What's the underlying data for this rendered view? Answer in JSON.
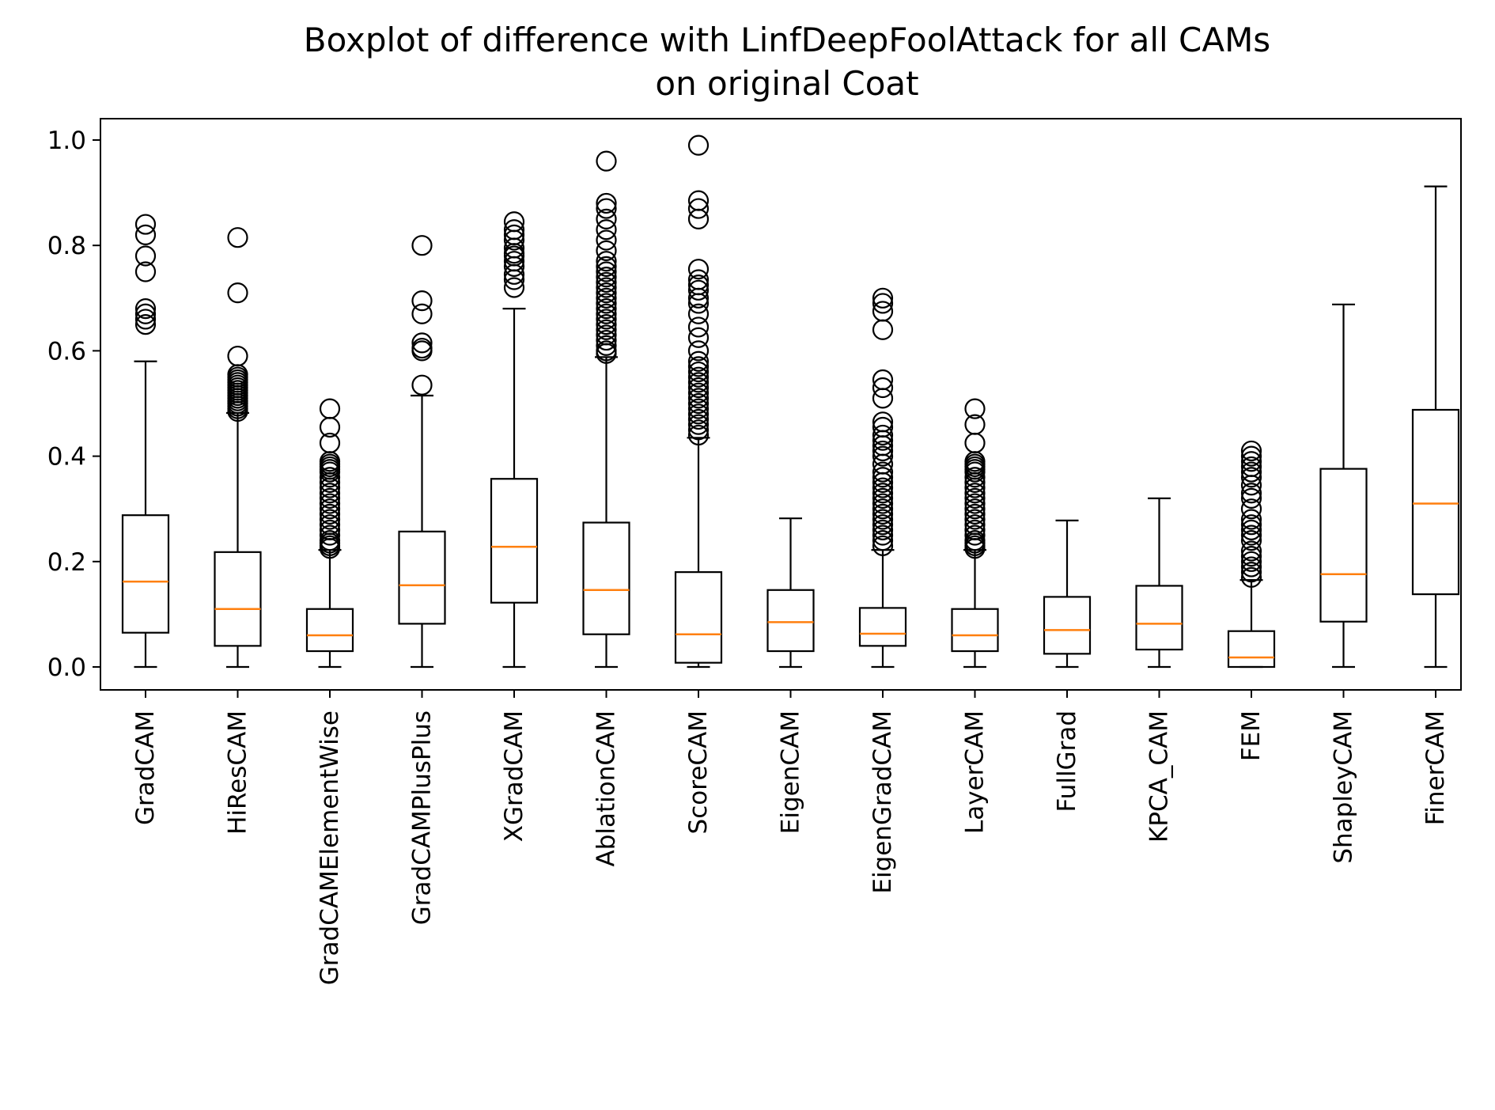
{
  "chart_data": {
    "type": "boxplot",
    "title": "Boxplot of difference with LinfDeepFoolAttack for all CAMs",
    "subtitle": "on original Coat",
    "xlabel": "",
    "ylabel": "",
    "ylim": [
      -0.045,
      1.04
    ],
    "yticks": [
      0.0,
      0.2,
      0.4,
      0.6,
      0.8,
      1.0
    ],
    "ytick_labels": [
      "0.0",
      "0.2",
      "0.4",
      "0.6",
      "0.8",
      "1.0"
    ],
    "grid": false,
    "colors": {
      "box": "#000000",
      "median": "#ff7f0e",
      "background": "#ffffff"
    },
    "categories": [
      "GradCAM",
      "HiResCAM",
      "GradCAMElementWise",
      "GradCAMPlusPlus",
      "XGradCAM",
      "AblationCAM",
      "ScoreCAM",
      "EigenCAM",
      "EigenGradCAM",
      "LayerCAM",
      "FullGrad",
      "KPCA_CAM",
      "FEM",
      "ShapleyCAM",
      "FinerCAM"
    ],
    "boxes": [
      {
        "name": "GradCAM",
        "whislo": 0.0,
        "q1": 0.065,
        "med": 0.162,
        "q3": 0.288,
        "whishi": 0.58,
        "fliers": [
          0.84,
          0.82,
          0.78,
          0.75,
          0.68,
          0.67,
          0.66,
          0.65
        ]
      },
      {
        "name": "HiResCAM",
        "whislo": 0.0,
        "q1": 0.04,
        "med": 0.11,
        "q3": 0.218,
        "whishi": 0.482,
        "fliers": [
          0.815,
          0.71,
          0.59,
          0.555,
          0.55,
          0.545,
          0.54,
          0.535,
          0.53,
          0.525,
          0.52,
          0.515,
          0.51,
          0.505,
          0.5,
          0.495,
          0.49,
          0.485
        ]
      },
      {
        "name": "GradCAMElementWise",
        "whislo": 0.0,
        "q1": 0.03,
        "med": 0.06,
        "q3": 0.11,
        "whishi": 0.222,
        "fliers": [
          0.49,
          0.455,
          0.425,
          0.39,
          0.385,
          0.38,
          0.375,
          0.37,
          0.36,
          0.35,
          0.34,
          0.33,
          0.32,
          0.31,
          0.3,
          0.29,
          0.28,
          0.27,
          0.26,
          0.25,
          0.24,
          0.235,
          0.23,
          0.225
        ]
      },
      {
        "name": "GradCAMPlusPlus",
        "whislo": 0.0,
        "q1": 0.082,
        "med": 0.155,
        "q3": 0.257,
        "whishi": 0.515,
        "fliers": [
          0.8,
          0.695,
          0.67,
          0.615,
          0.605,
          0.6,
          0.535
        ]
      },
      {
        "name": "XGradCAM",
        "whislo": 0.0,
        "q1": 0.122,
        "med": 0.228,
        "q3": 0.357,
        "whishi": 0.68,
        "fliers": [
          0.845,
          0.83,
          0.82,
          0.81,
          0.795,
          0.785,
          0.78,
          0.77,
          0.76,
          0.745,
          0.735,
          0.72
        ]
      },
      {
        "name": "AblationCAM",
        "whislo": 0.0,
        "q1": 0.062,
        "med": 0.146,
        "q3": 0.274,
        "whishi": 0.588,
        "fliers": [
          0.96,
          0.88,
          0.87,
          0.85,
          0.83,
          0.81,
          0.79,
          0.77,
          0.76,
          0.75,
          0.74,
          0.73,
          0.72,
          0.71,
          0.7,
          0.69,
          0.68,
          0.67,
          0.66,
          0.65,
          0.64,
          0.63,
          0.62,
          0.61,
          0.6,
          0.595
        ]
      },
      {
        "name": "ScoreCAM",
        "whislo": 0.0,
        "q1": 0.008,
        "med": 0.062,
        "q3": 0.18,
        "whishi": 0.435,
        "fliers": [
          0.99,
          0.885,
          0.87,
          0.85,
          0.755,
          0.735,
          0.725,
          0.715,
          0.7,
          0.69,
          0.67,
          0.645,
          0.625,
          0.6,
          0.58,
          0.57,
          0.56,
          0.55,
          0.54,
          0.53,
          0.52,
          0.51,
          0.5,
          0.49,
          0.48,
          0.47,
          0.46,
          0.45,
          0.44
        ]
      },
      {
        "name": "EigenCAM",
        "whislo": 0.0,
        "q1": 0.03,
        "med": 0.085,
        "q3": 0.146,
        "whishi": 0.282,
        "fliers": []
      },
      {
        "name": "EigenGradCAM",
        "whislo": 0.0,
        "q1": 0.04,
        "med": 0.063,
        "q3": 0.112,
        "whishi": 0.222,
        "fliers": [
          0.7,
          0.69,
          0.675,
          0.64,
          0.545,
          0.53,
          0.51,
          0.465,
          0.455,
          0.44,
          0.43,
          0.42,
          0.41,
          0.4,
          0.385,
          0.37,
          0.36,
          0.35,
          0.34,
          0.33,
          0.32,
          0.31,
          0.3,
          0.29,
          0.28,
          0.27,
          0.26,
          0.25,
          0.24,
          0.23
        ]
      },
      {
        "name": "LayerCAM",
        "whislo": 0.0,
        "q1": 0.03,
        "med": 0.06,
        "q3": 0.11,
        "whishi": 0.222,
        "fliers": [
          0.49,
          0.46,
          0.425,
          0.39,
          0.385,
          0.38,
          0.375,
          0.37,
          0.36,
          0.35,
          0.34,
          0.33,
          0.32,
          0.31,
          0.3,
          0.29,
          0.28,
          0.27,
          0.26,
          0.25,
          0.24,
          0.235,
          0.23,
          0.225
        ]
      },
      {
        "name": "FullGrad",
        "whislo": 0.0,
        "q1": 0.025,
        "med": 0.07,
        "q3": 0.133,
        "whishi": 0.278,
        "fliers": []
      },
      {
        "name": "KPCA_CAM",
        "whislo": 0.0,
        "q1": 0.033,
        "med": 0.082,
        "q3": 0.154,
        "whishi": 0.32,
        "fliers": []
      },
      {
        "name": "FEM",
        "whislo": 0.0,
        "q1": 0.0,
        "med": 0.018,
        "q3": 0.068,
        "whishi": 0.165,
        "fliers": [
          0.41,
          0.4,
          0.39,
          0.38,
          0.37,
          0.36,
          0.345,
          0.33,
          0.32,
          0.3,
          0.28,
          0.27,
          0.26,
          0.25,
          0.24,
          0.22,
          0.21,
          0.2,
          0.19,
          0.18,
          0.17
        ]
      },
      {
        "name": "ShapleyCAM",
        "whislo": 0.0,
        "q1": 0.086,
        "med": 0.176,
        "q3": 0.376,
        "whishi": 0.688,
        "fliers": []
      },
      {
        "name": "FinerCAM",
        "whislo": 0.0,
        "q1": 0.138,
        "med": 0.31,
        "q3": 0.488,
        "whishi": 0.912,
        "fliers": []
      }
    ]
  }
}
